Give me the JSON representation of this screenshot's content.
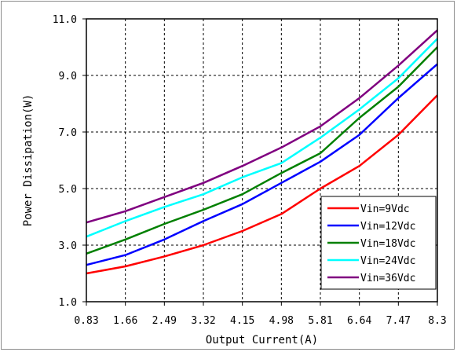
{
  "chart_data": {
    "type": "line",
    "title": "",
    "xlabel": "Output Current(A)",
    "ylabel": "Power Dissipation(W)",
    "x": [
      0.83,
      1.66,
      2.49,
      3.32,
      4.15,
      4.98,
      5.81,
      6.64,
      7.47,
      8.3
    ],
    "x_tick_labels": [
      "0.83",
      "1.66",
      "2.49",
      "3.32",
      "4.15",
      "4.98",
      "5.81",
      "6.64",
      "7.47",
      "8.3"
    ],
    "y_ticks": [
      1.0,
      3.0,
      5.0,
      7.0,
      9.0,
      11.0
    ],
    "y_tick_labels": [
      "1.0",
      "3.0",
      "5.0",
      "7.0",
      "9.0",
      "11.0"
    ],
    "xlim": [
      0.83,
      8.3
    ],
    "ylim": [
      1.0,
      11.0
    ],
    "grid": true,
    "legend_position": "bottom-right",
    "series": [
      {
        "name": "Vin=9Vdc",
        "color": "#ff0000",
        "values": [
          2.0,
          2.25,
          2.6,
          3.0,
          3.5,
          4.1,
          5.0,
          5.8,
          6.9,
          8.3
        ]
      },
      {
        "name": "Vin=12Vdc",
        "color": "#0000ff",
        "values": [
          2.3,
          2.65,
          3.2,
          3.85,
          4.45,
          5.2,
          5.95,
          6.9,
          8.2,
          9.4
        ]
      },
      {
        "name": "Vin=18Vdc",
        "color": "#008000",
        "values": [
          2.7,
          3.2,
          3.75,
          4.25,
          4.8,
          5.55,
          6.25,
          7.5,
          8.6,
          10.0
        ]
      },
      {
        "name": "Vin=24Vdc",
        "color": "#00ffff",
        "values": [
          3.3,
          3.85,
          4.35,
          4.8,
          5.4,
          5.9,
          6.8,
          7.8,
          8.9,
          10.3
        ]
      },
      {
        "name": "Vin=36Vdc",
        "color": "#800080",
        "values": [
          3.8,
          4.2,
          4.7,
          5.2,
          5.8,
          6.45,
          7.2,
          8.2,
          9.35,
          10.6
        ]
      }
    ]
  }
}
